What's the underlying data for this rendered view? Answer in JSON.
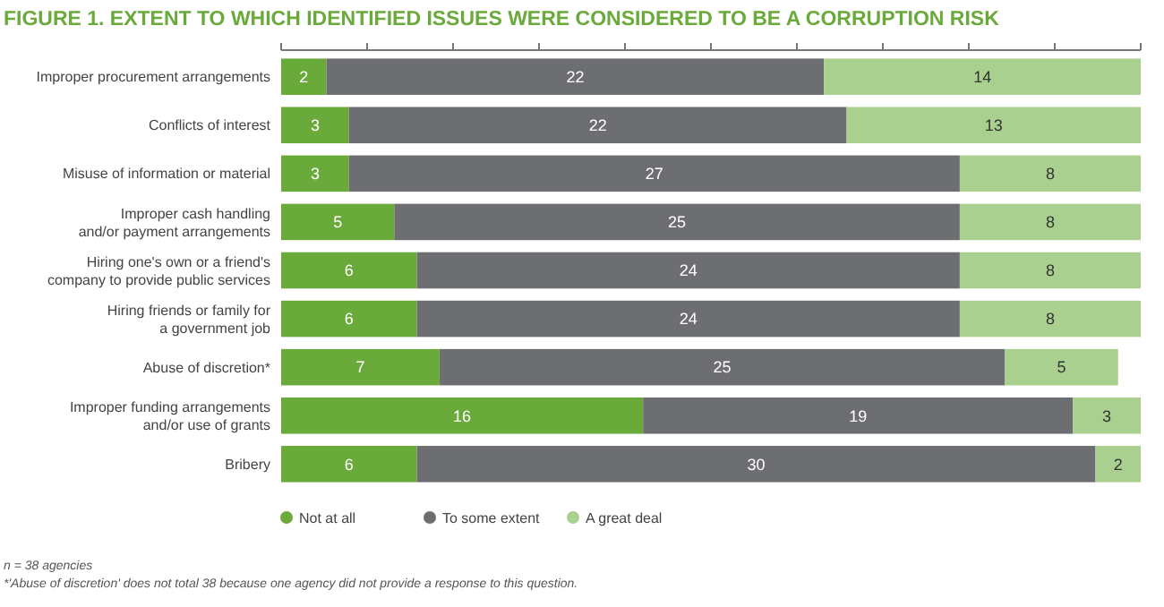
{
  "chart_data": {
    "type": "bar",
    "orientation": "horizontal",
    "stacked": true,
    "title": "FIGURE 1. EXTENT TO WHICH IDENTIFIED ISSUES WERE CONSIDERED TO BE A CORRUPTION RISK",
    "categories": [
      "Improper procurement arrangements",
      "Conflicts of interest",
      "Misuse of information or material",
      "Improper cash handling\nand/or payment arrangements",
      "Hiring one's own or a friend's\ncompany to provide public services",
      "Hiring friends or family for\na government job",
      "Abuse of discretion*",
      "Improper funding arrangements\nand/or use of grants",
      "Bribery"
    ],
    "series": [
      {
        "name": "Not at all",
        "color": "#6aaa3a",
        "values": [
          2,
          3,
          3,
          5,
          6,
          6,
          7,
          16,
          6
        ]
      },
      {
        "name": "To some extent",
        "color": "#6d6e71",
        "values": [
          22,
          22,
          27,
          25,
          24,
          24,
          25,
          19,
          30
        ]
      },
      {
        "name": "A great deal",
        "color": "#a9d08e",
        "values": [
          14,
          13,
          8,
          8,
          8,
          8,
          5,
          3,
          2
        ]
      }
    ],
    "xlim": [
      0,
      38
    ],
    "xticks": [
      {
        "value": 0,
        "label": null
      },
      {
        "value": 3.8,
        "label": null
      },
      {
        "value": 7.6,
        "label": null
      },
      {
        "value": 11.4,
        "label": null
      },
      {
        "value": 15.2,
        "label": null
      },
      {
        "value": 19,
        "label": null
      },
      {
        "value": 22.8,
        "label": null
      },
      {
        "value": 26.6,
        "label": null
      },
      {
        "value": 30.4,
        "label": null
      },
      {
        "value": 34.2,
        "label": null
      },
      {
        "value": 38,
        "label": null
      }
    ],
    "data_labels": true,
    "legend": "bottom",
    "annotations": [
      "n = 38 agencies",
      "*'Abuse of discretion' does not total 38 because one agency did not provide a response to this question."
    ]
  }
}
